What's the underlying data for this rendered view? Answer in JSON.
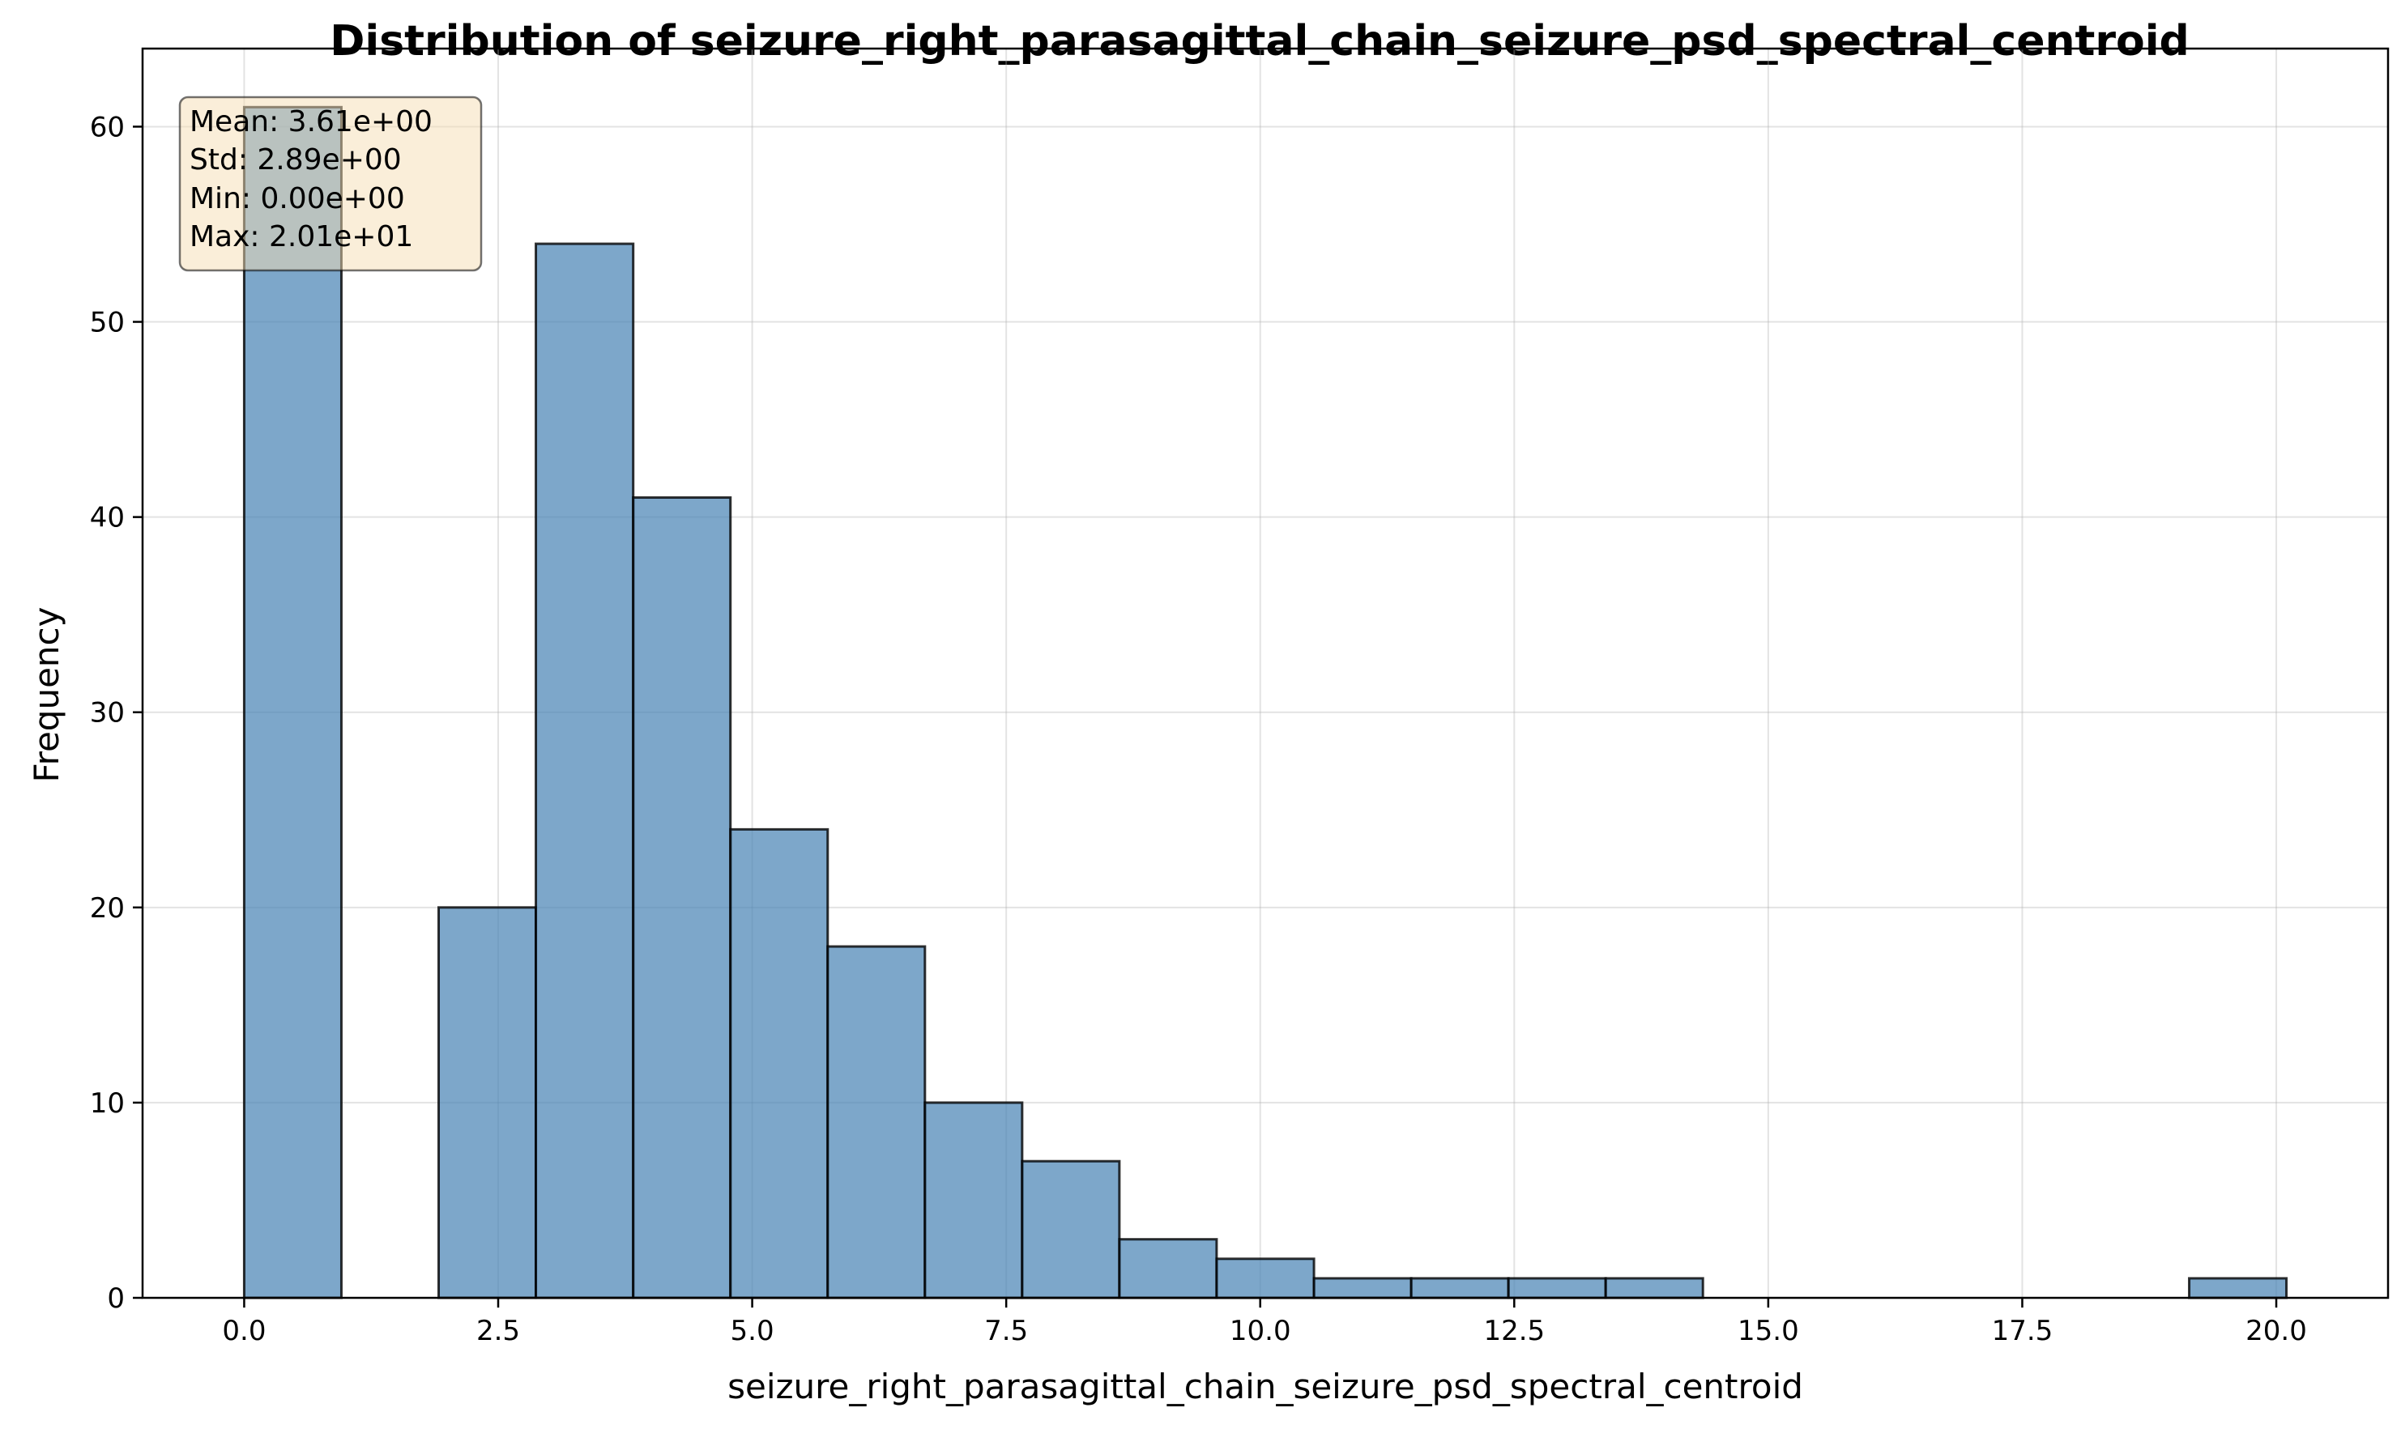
{
  "chart_data": {
    "type": "bar",
    "title": "Distribution of seizure_right_parasagittal_chain_seizure_psd_spectral_centroid",
    "xlabel": "seizure_right_parasagittal_chain_seizure_psd_spectral_centroid",
    "ylabel": "Frequency",
    "xlim": [
      -1.0,
      21.1
    ],
    "ylim": [
      0,
      64
    ],
    "xticks": [
      0.0,
      2.5,
      5.0,
      7.5,
      10.0,
      12.5,
      15.0,
      17.5,
      20.0
    ],
    "xtick_labels": [
      "0.0",
      "2.5",
      "5.0",
      "7.5",
      "10.0",
      "12.5",
      "15.0",
      "17.5",
      "20.0"
    ],
    "yticks": [
      0,
      10,
      20,
      30,
      40,
      50,
      60
    ],
    "ytick_labels": [
      "0",
      "10",
      "20",
      "30",
      "40",
      "50",
      "60"
    ],
    "grid": true,
    "bar_color": "#4682b4",
    "edge_color": "#000000",
    "bin_edges": [
      0.0,
      0.957,
      1.914,
      2.871,
      3.829,
      4.786,
      5.743,
      6.7,
      7.657,
      8.614,
      9.571,
      10.529,
      11.486,
      12.443,
      13.4,
      14.357,
      15.314,
      16.271,
      17.229,
      18.186,
      19.143,
      20.1
    ],
    "counts": [
      61,
      0,
      20,
      54,
      41,
      24,
      18,
      10,
      7,
      3,
      2,
      1,
      1,
      1,
      1,
      0,
      0,
      0,
      0,
      0,
      1
    ],
    "stats": {
      "lines": [
        "Mean: 3.61e+00",
        "Std: 2.89e+00",
        "Min: 0.00e+00",
        "Max: 2.01e+01"
      ],
      "box_fill": "#f5deb3",
      "position": "top-left"
    }
  }
}
